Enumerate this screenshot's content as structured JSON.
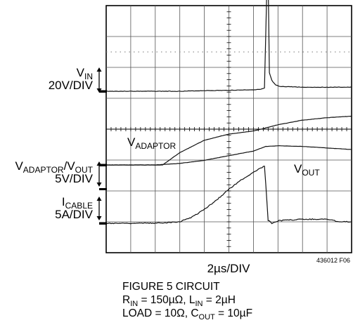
{
  "chart_data": {
    "type": "line",
    "title": "",
    "xlabel": "2µs/DIV",
    "figure_code": "436012 F06",
    "grid": true,
    "divisions": {
      "x": 10,
      "y": 8
    },
    "xlim": [
      0,
      10
    ],
    "x_unit": "div",
    "channels": [
      {
        "name_main": "V",
        "name_sub": "IN",
        "scale": "20V/DIV"
      },
      {
        "name_main": "V",
        "name_sub": "ADAPTOR",
        "name_mid": "/V",
        "name_sub2": "OUT",
        "scale": "5V/DIV"
      },
      {
        "name_main": "I",
        "name_sub": "CABLE",
        "scale": "5A/DIV"
      }
    ],
    "trace_labels": [
      {
        "main": "V",
        "sub": "ADAPTOR"
      },
      {
        "main": "V",
        "sub": "OUT"
      }
    ],
    "series": [
      {
        "id": "vin",
        "x": [
          0,
          1,
          2,
          3,
          4,
          5,
          6,
          6.3,
          6.45,
          6.55,
          6.6,
          6.65,
          6.75,
          6.9,
          7.1,
          7.4,
          8,
          9,
          10
        ],
        "y": [
          0,
          0,
          0,
          0,
          0.02,
          0.03,
          0.05,
          0.06,
          0.1,
          3.5,
          3.7,
          0.6,
          0.35,
          0.2,
          0.15,
          0.15,
          0.13,
          0.13,
          0.13
        ]
      },
      {
        "id": "vadaptor",
        "x": [
          0,
          1,
          2,
          2.3,
          3,
          4,
          5,
          6,
          7,
          8,
          9,
          10
        ],
        "y": [
          0,
          0,
          0,
          0,
          0.4,
          0.8,
          1.0,
          1.1,
          1.3,
          1.45,
          1.53,
          1.58
        ]
      },
      {
        "id": "vout",
        "x": [
          0,
          1,
          2,
          3,
          4,
          5,
          6,
          6.5,
          7,
          8,
          9,
          10
        ],
        "y": [
          0,
          0,
          0,
          0.05,
          0.15,
          0.3,
          0.45,
          0.6,
          0.62,
          0.6,
          0.55,
          0.5
        ]
      },
      {
        "id": "icable",
        "x": [
          0,
          1,
          2,
          3,
          3.5,
          4,
          4.5,
          5,
          5.5,
          6,
          6.45,
          6.6,
          6.75,
          7,
          8,
          9,
          9.5,
          10
        ],
        "y": [
          0,
          0,
          0,
          0.05,
          0.2,
          0.45,
          0.75,
          1.1,
          1.4,
          1.65,
          1.85,
          0.1,
          0.0,
          0.08,
          0.13,
          0.13,
          0.05,
          0.05
        ]
      }
    ]
  },
  "labels": {
    "vin_main": "V",
    "vin_sub": "IN",
    "vin_scale": "20V/DIV",
    "va_main": "V",
    "va_sub": "ADAPTOR",
    "va_mid": "/V",
    "va_sub2": "OUT",
    "va_scale": "5V/DIV",
    "ic_main": "I",
    "ic_sub": "CABLE",
    "ic_scale": "5A/DIV",
    "trace_va_main": "V",
    "trace_va_sub": "ADAPTOR",
    "trace_vout_main": "V",
    "trace_vout_sub": "OUT"
  },
  "caption": {
    "line1": "FIGURE 5 CIRCUIT",
    "l2_a": "R",
    "l2_a_sub": "IN",
    "l2_b": " = 150µΩ, L",
    "l2_b_sub": "IN",
    "l2_c": " = 2µH",
    "l3_a": "LOAD = 10Ω, C",
    "l3_a_sub": "OUT",
    "l3_b": " = 10µF"
  }
}
